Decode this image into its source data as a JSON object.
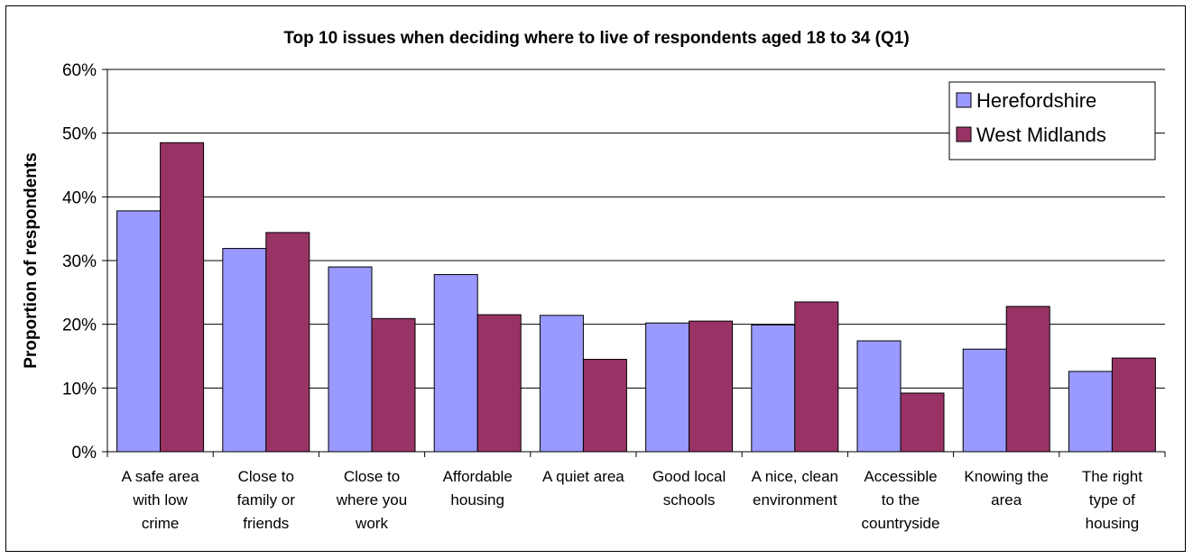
{
  "chart_data": {
    "type": "bar",
    "title": "Top 10 issues when deciding where to live of respondents aged 18 to 34 (Q1)",
    "xlabel": "",
    "ylabel": "Proportion of respondents",
    "ylim": [
      0,
      60
    ],
    "yticks": [
      "0%",
      "10%",
      "20%",
      "30%",
      "40%",
      "50%",
      "60%"
    ],
    "grid": true,
    "legend_position": "top-right",
    "categories": [
      [
        "A safe area",
        "with low",
        "crime"
      ],
      [
        "Close to",
        "family or",
        "friends"
      ],
      [
        "Close to",
        "where you",
        "work"
      ],
      [
        "Affordable",
        "housing"
      ],
      [
        "A quiet area"
      ],
      [
        "Good local",
        "schools"
      ],
      [
        "A nice, clean",
        "environment"
      ],
      [
        "Accessible",
        "to the",
        "countryside"
      ],
      [
        "Knowing the",
        "area"
      ],
      [
        "The right",
        "type of",
        "housing"
      ]
    ],
    "series": [
      {
        "name": "Herefordshire",
        "color": "#9999ff",
        "values": [
          37.8,
          31.9,
          29.0,
          27.8,
          21.4,
          20.2,
          19.9,
          17.4,
          16.1,
          12.6
        ]
      },
      {
        "name": "West Midlands",
        "color": "#993366",
        "values": [
          48.5,
          34.4,
          20.9,
          21.5,
          14.5,
          20.5,
          23.5,
          9.2,
          22.8,
          14.7
        ]
      }
    ]
  }
}
